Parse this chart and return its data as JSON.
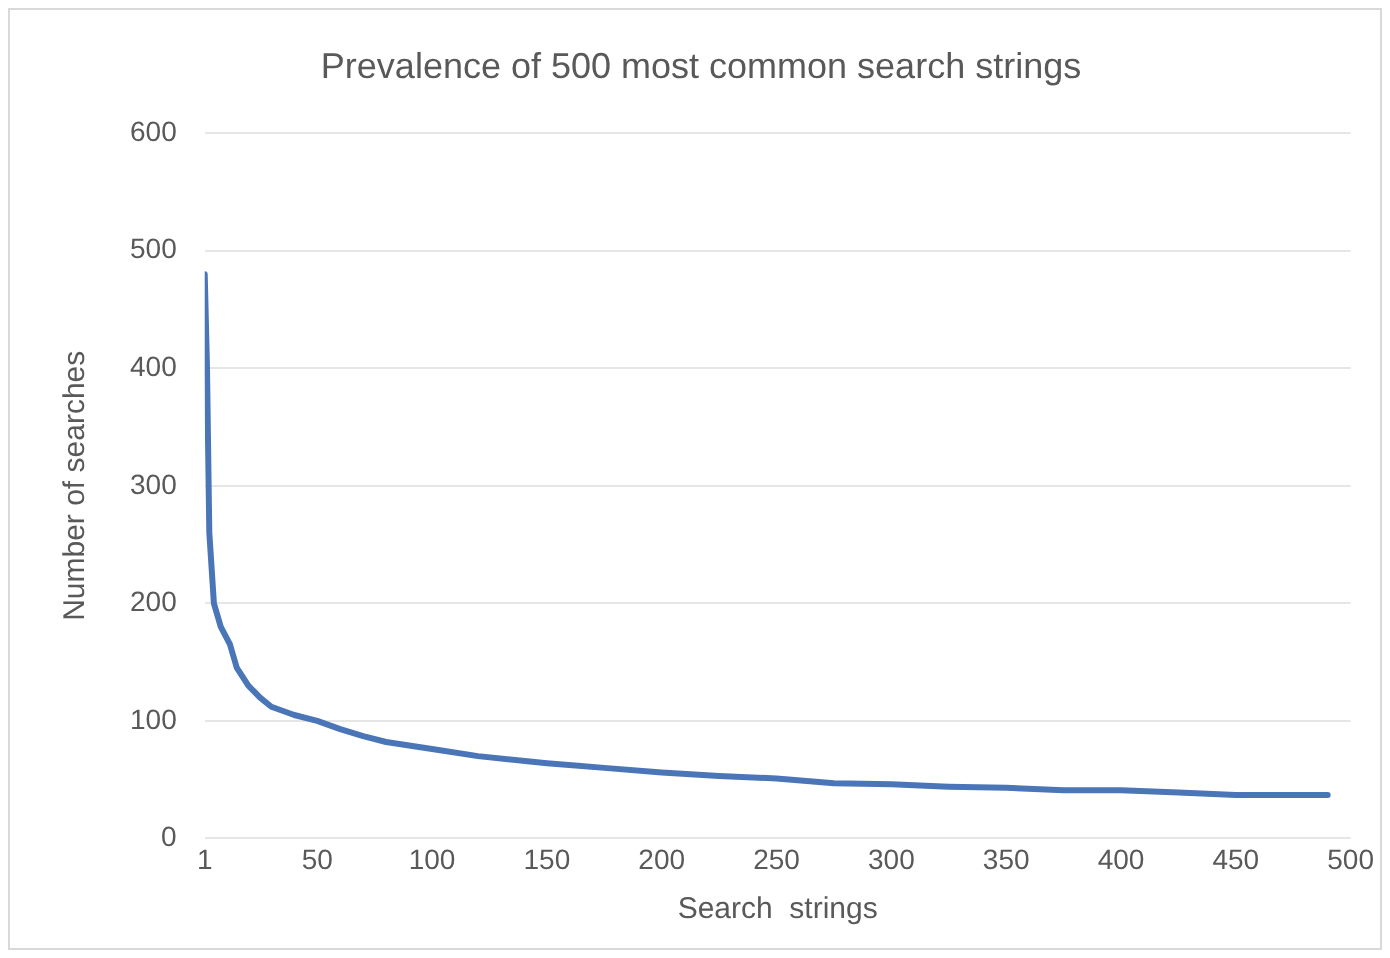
{
  "chart_data": {
    "type": "line",
    "title": "Prevalence of 500 most common search strings",
    "xlabel": "Search  strings",
    "ylabel": "Number of searches",
    "x": [
      1,
      2,
      3,
      4,
      5,
      8,
      12,
      15,
      20,
      25,
      30,
      40,
      50,
      60,
      70,
      80,
      100,
      120,
      150,
      175,
      200,
      225,
      250,
      275,
      300,
      325,
      350,
      375,
      400,
      425,
      450,
      470,
      490
    ],
    "series": [
      {
        "color": "#4a76b8",
        "values": [
          480,
          400,
          260,
          230,
          200,
          180,
          165,
          145,
          130,
          120,
          112,
          105,
          100,
          93,
          87,
          82,
          76,
          70,
          64,
          60,
          56,
          53,
          51,
          47,
          46,
          44,
          43,
          41,
          41,
          39,
          37,
          37,
          37
        ]
      }
    ],
    "xlim": [
      1,
      500
    ],
    "xticks": [
      1,
      50,
      100,
      150,
      200,
      250,
      300,
      350,
      400,
      450,
      500
    ],
    "ylim": [
      0,
      600
    ],
    "yticks": [
      0,
      100,
      200,
      300,
      400,
      500,
      600
    ],
    "grid": "y",
    "legend": false,
    "marker": "none",
    "line_style": "solid"
  }
}
